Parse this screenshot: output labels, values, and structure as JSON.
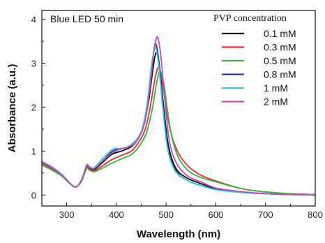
{
  "chart_data": {
    "type": "line",
    "title": "",
    "xlabel": "Wavelength (nm)",
    "ylabel": "Absorbance (a.u.)",
    "xlim": [
      250,
      800
    ],
    "ylim": [
      -0.25,
      4.2
    ],
    "xticks": [
      300,
      400,
      500,
      600,
      700,
      800
    ],
    "yticks": [
      0,
      1,
      2,
      3,
      4
    ],
    "grid": false,
    "annotation": "Blue LED 50 min",
    "legend_title": "PVP concentration",
    "legend_position": "top-right",
    "series": [
      {
        "name": "0.1 mM",
        "color": "#000000",
        "x": [
          250,
          270,
          290,
          305,
          318,
          330,
          340,
          345,
          355,
          370,
          390,
          410,
          430,
          445,
          455,
          465,
          472,
          478,
          482,
          488,
          495,
          505,
          520,
          540,
          560,
          600,
          650,
          700,
          750,
          800
        ],
        "y": [
          0.72,
          0.6,
          0.45,
          0.28,
          0.18,
          0.33,
          0.65,
          0.62,
          0.58,
          0.72,
          0.92,
          1.0,
          1.1,
          1.3,
          1.6,
          2.15,
          2.75,
          3.18,
          3.2,
          2.8,
          2.0,
          1.1,
          0.6,
          0.4,
          0.3,
          0.15,
          0.07,
          0.03,
          0.01,
          0.0
        ]
      },
      {
        "name": "0.3 mM",
        "color": "#e03030",
        "x": [
          250,
          270,
          290,
          305,
          318,
          330,
          340,
          345,
          355,
          370,
          390,
          410,
          430,
          445,
          458,
          468,
          476,
          482,
          486,
          492,
          500,
          510,
          525,
          545,
          570,
          600,
          650,
          700,
          750,
          800
        ],
        "y": [
          0.72,
          0.6,
          0.45,
          0.28,
          0.18,
          0.33,
          0.63,
          0.6,
          0.55,
          0.65,
          0.8,
          0.9,
          1.0,
          1.2,
          1.5,
          2.0,
          2.55,
          2.86,
          2.88,
          2.6,
          2.0,
          1.4,
          0.95,
          0.65,
          0.45,
          0.32,
          0.15,
          0.07,
          0.03,
          0.01
        ]
      },
      {
        "name": "0.5 mM",
        "color": "#3cb043",
        "x": [
          250,
          270,
          290,
          305,
          318,
          330,
          340,
          345,
          355,
          370,
          390,
          410,
          430,
          445,
          460,
          472,
          480,
          486,
          490,
          496,
          503,
          512,
          525,
          545,
          570,
          600,
          650,
          700,
          750,
          800
        ],
        "y": [
          0.68,
          0.57,
          0.43,
          0.27,
          0.18,
          0.32,
          0.6,
          0.57,
          0.53,
          0.6,
          0.72,
          0.82,
          0.92,
          1.1,
          1.4,
          1.95,
          2.5,
          2.8,
          2.78,
          2.5,
          1.9,
          1.3,
          0.85,
          0.55,
          0.4,
          0.3,
          0.15,
          0.07,
          0.03,
          0.01
        ]
      },
      {
        "name": "0.8 mM",
        "color": "#2d3c9c",
        "x": [
          250,
          270,
          290,
          305,
          318,
          330,
          340,
          345,
          355,
          370,
          390,
          405,
          420,
          440,
          455,
          465,
          472,
          477,
          481,
          487,
          494,
          504,
          520,
          540,
          560,
          600,
          650,
          700,
          750,
          800
        ],
        "y": [
          0.74,
          0.62,
          0.46,
          0.28,
          0.18,
          0.34,
          0.66,
          0.63,
          0.6,
          0.75,
          0.98,
          1.05,
          1.08,
          1.25,
          1.6,
          2.3,
          3.0,
          3.4,
          3.38,
          2.9,
          2.0,
          1.05,
          0.55,
          0.35,
          0.25,
          0.13,
          0.06,
          0.03,
          0.01,
          0.0
        ]
      },
      {
        "name": "1 mM",
        "color": "#3cc6d8",
        "x": [
          250,
          270,
          290,
          305,
          318,
          330,
          340,
          345,
          355,
          370,
          390,
          400,
          410,
          430,
          450,
          462,
          470,
          476,
          480,
          486,
          493,
          503,
          518,
          540,
          560,
          600,
          650,
          700,
          750,
          800
        ],
        "y": [
          0.75,
          0.63,
          0.46,
          0.28,
          0.18,
          0.35,
          0.67,
          0.64,
          0.62,
          0.8,
          1.02,
          1.06,
          1.05,
          1.15,
          1.45,
          2.1,
          2.9,
          3.3,
          3.32,
          2.85,
          2.0,
          1.05,
          0.55,
          0.35,
          0.25,
          0.12,
          0.06,
          0.03,
          0.01,
          0.0
        ]
      },
      {
        "name": "2 mM",
        "color": "#c04fb0",
        "x": [
          250,
          270,
          290,
          305,
          318,
          330,
          340,
          345,
          355,
          370,
          390,
          410,
          430,
          445,
          458,
          468,
          475,
          480,
          484,
          490,
          497,
          507,
          522,
          545,
          570,
          600,
          650,
          700,
          750,
          800
        ],
        "y": [
          0.76,
          0.64,
          0.47,
          0.29,
          0.18,
          0.35,
          0.68,
          0.65,
          0.6,
          0.75,
          0.95,
          1.05,
          1.12,
          1.3,
          1.7,
          2.5,
          3.25,
          3.55,
          3.56,
          3.1,
          2.2,
          1.2,
          0.7,
          0.42,
          0.3,
          0.16,
          0.08,
          0.03,
          0.01,
          0.0
        ]
      }
    ]
  }
}
